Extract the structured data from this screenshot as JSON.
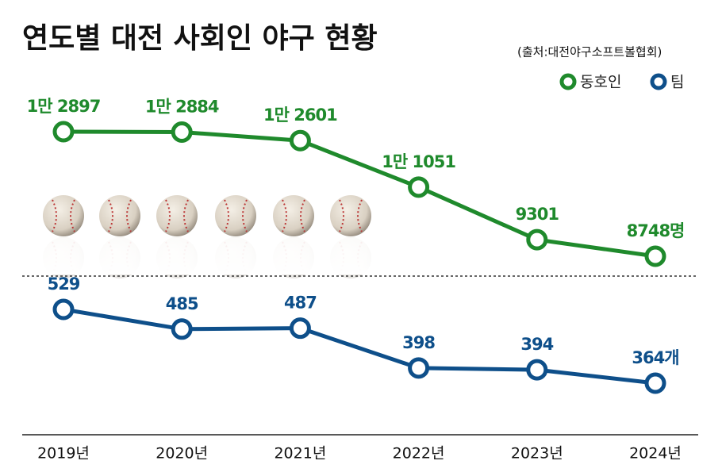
{
  "chart_data": {
    "type": "line",
    "title": "연도별 대전 사회인 야구 현황",
    "subtitle": "(출처:대전야구소프트볼협회)",
    "categories": [
      "2019년",
      "2020년",
      "2021년",
      "2022년",
      "2023년",
      "2024년"
    ],
    "series": [
      {
        "name": "동호인",
        "color": "#1f8a2c",
        "values": [
          12897,
          12884,
          12601,
          11051,
          9301,
          8748
        ],
        "value_labels": [
          "1만 2897",
          "1만 2884",
          "1만 2601",
          "1만 1051",
          "9301",
          "8748명"
        ]
      },
      {
        "name": "팀",
        "color": "#0e4f8a",
        "values": [
          529,
          485,
          487,
          398,
          394,
          364
        ],
        "value_labels": [
          "529",
          "485",
          "487",
          "398",
          "394",
          "364개"
        ]
      }
    ],
    "legend": "top-right"
  }
}
